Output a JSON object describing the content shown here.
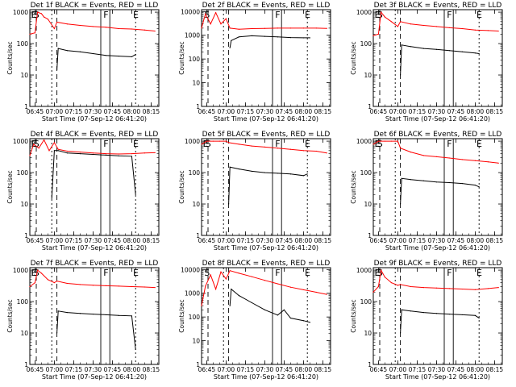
{
  "colors": {
    "events": "#000000",
    "lld": "#ff0000",
    "background": "#ffffff"
  },
  "chart_data": [
    {
      "type": "line",
      "title": "Det 1f BLACK = Events, RED = LLD",
      "xlabel": "Start Time (07-Sep-12 06:41:20)",
      "ylabel": "Counts/sec",
      "x_ticks": [
        "06:45",
        "07:00",
        "07:15",
        "07:30",
        "07:45",
        "08:00",
        "08:15"
      ],
      "x_range": [
        "06:41",
        "08:21"
      ],
      "y_ticks": [
        "1",
        "10",
        "100",
        "1000"
      ],
      "ylim": [
        1,
        1200
      ],
      "yscale": "log",
      "markers": [
        "E",
        "S",
        "F",
        "E"
      ],
      "series": [
        {
          "name": "LLD",
          "x": [
            "06:41",
            "06:45",
            "06:47",
            "06:50",
            "06:52",
            "06:55",
            "07:00",
            "07:02",
            "07:10",
            "07:20",
            "07:30",
            "07:40",
            "07:50",
            "08:00",
            "08:10",
            "08:18"
          ],
          "values": [
            200,
            220,
            1000,
            900,
            700,
            600,
            300,
            480,
            420,
            380,
            350,
            330,
            300,
            290,
            270,
            250
          ]
        },
        {
          "name": "Events",
          "x": [
            "07:02",
            "07:03",
            "07:10",
            "07:20",
            "07:30",
            "07:40",
            "07:50",
            "08:00",
            "08:03"
          ],
          "values": [
            15,
            70,
            60,
            55,
            48,
            42,
            40,
            38,
            45
          ]
        }
      ]
    },
    {
      "type": "line",
      "title": "Det 2f BLACK = Events, RED = LLD",
      "xlabel": "Start Time (07-Sep-12 06:41:20)",
      "ylabel": "Counts/sec",
      "x_ticks": [
        "06:45",
        "07:00",
        "07:15",
        "07:30",
        "07:45",
        "08:00",
        "08:15"
      ],
      "x_range": [
        "06:41",
        "08:21"
      ],
      "y_ticks": [
        "1",
        "10",
        "100",
        "1000",
        "10000"
      ],
      "ylim": [
        1,
        12000
      ],
      "yscale": "log",
      "markers": [
        "S",
        "F",
        "E"
      ],
      "series": [
        {
          "name": "LLD",
          "x": [
            "06:41",
            "06:44",
            "06:48",
            "06:52",
            "06:56",
            "07:00",
            "07:03",
            "07:10",
            "07:20",
            "07:30",
            "07:40",
            "07:50",
            "08:00",
            "08:10",
            "08:18"
          ],
          "values": [
            2000,
            8000,
            3000,
            9000,
            3000,
            5000,
            2000,
            1800,
            1900,
            1950,
            2000,
            2000,
            2000,
            2000,
            1950
          ]
        },
        {
          "name": "Events",
          "x": [
            "07:03",
            "07:04",
            "07:10",
            "07:20",
            "07:30",
            "07:40",
            "07:50",
            "08:00",
            "08:05"
          ],
          "values": [
            300,
            600,
            850,
            950,
            900,
            850,
            800,
            780,
            780
          ]
        }
      ]
    },
    {
      "type": "line",
      "title": "Det 3f BLACK = Events, RED = LLD",
      "xlabel": "Start Time (07-Sep-12 06:41:20)",
      "ylabel": "Counts/sec",
      "x_ticks": [
        "06:45",
        "07:00",
        "07:15",
        "07:30",
        "07:45",
        "08:00",
        "08:15"
      ],
      "x_range": [
        "06:41",
        "08:21"
      ],
      "y_ticks": [
        "1",
        "10",
        "100",
        "1000"
      ],
      "ylim": [
        1,
        1200
      ],
      "yscale": "log",
      "markers": [
        "E",
        "S",
        "F",
        "E"
      ],
      "series": [
        {
          "name": "LLD",
          "x": [
            "06:41",
            "06:45",
            "06:47",
            "06:50",
            "06:55",
            "07:00",
            "07:02",
            "07:10",
            "07:20",
            "07:30",
            "07:40",
            "07:50",
            "08:00",
            "08:10",
            "08:18"
          ],
          "values": [
            180,
            200,
            1000,
            700,
            500,
            350,
            500,
            420,
            380,
            350,
            320,
            300,
            270,
            260,
            250
          ]
        },
        {
          "name": "Events",
          "x": [
            "07:02",
            "07:03",
            "07:10",
            "07:20",
            "07:30",
            "07:40",
            "07:50",
            "08:00",
            "08:03"
          ],
          "values": [
            10,
            90,
            80,
            70,
            65,
            60,
            55,
            50,
            48
          ]
        }
      ]
    },
    {
      "type": "line",
      "title": "Det 4f BLACK = Events, RED = LLD",
      "xlabel": "Start Time (07-Sep-12 06:41:20)",
      "ylabel": "Counts/sec",
      "x_ticks": [
        "06:45",
        "07:00",
        "07:15",
        "07:30",
        "07:45",
        "08:00",
        "08:15"
      ],
      "x_range": [
        "06:41",
        "08:21"
      ],
      "y_ticks": [
        "1",
        "10",
        "100",
        "1000"
      ],
      "ylim": [
        1,
        1200
      ],
      "yscale": "log",
      "markers": [
        "E",
        "S",
        "F",
        "E"
      ],
      "series": [
        {
          "name": "LLD",
          "x": [
            "06:41",
            "06:44",
            "06:48",
            "06:52",
            "06:56",
            "07:00",
            "07:03",
            "07:10",
            "07:20",
            "07:30",
            "07:40",
            "07:50",
            "08:00",
            "08:10",
            "08:18"
          ],
          "values": [
            350,
            800,
            600,
            1100,
            500,
            900,
            550,
            480,
            450,
            420,
            400,
            390,
            400,
            420,
            430
          ]
        },
        {
          "name": "Events",
          "x": [
            "06:58",
            "07:00",
            "07:03",
            "07:10",
            "07:20",
            "07:30",
            "07:40",
            "07:50",
            "08:00",
            "08:03"
          ],
          "values": [
            15,
            500,
            500,
            420,
            400,
            380,
            360,
            340,
            330,
            20
          ]
        }
      ]
    },
    {
      "type": "line",
      "title": "Det 5f BLACK = Events, RED = LLD",
      "xlabel": "Start Time (07-Sep-12 06:41:20)",
      "ylabel": "Counts/sec",
      "x_ticks": [
        "06:45",
        "07:00",
        "07:15",
        "07:30",
        "07:45",
        "08:00",
        "08:15"
      ],
      "x_range": [
        "06:41",
        "08:21"
      ],
      "y_ticks": [
        "1",
        "10",
        "100",
        "1000"
      ],
      "ylim": [
        1,
        1200
      ],
      "yscale": "log",
      "markers": [
        "E",
        "S",
        "F",
        "E"
      ],
      "series": [
        {
          "name": "LLD",
          "x": [
            "06:41",
            "06:45",
            "06:50",
            "06:55",
            "07:00",
            "07:02",
            "07:10",
            "07:20",
            "07:30",
            "07:40",
            "07:50",
            "08:00",
            "08:10",
            "08:18"
          ],
          "values": [
            800,
            1000,
            1000,
            1000,
            1000,
            900,
            800,
            700,
            650,
            600,
            550,
            500,
            480,
            420
          ]
        },
        {
          "name": "Events",
          "x": [
            "07:02",
            "07:03",
            "07:10",
            "07:20",
            "07:30",
            "07:40",
            "07:50",
            "08:00",
            "08:03"
          ],
          "values": [
            10,
            150,
            130,
            110,
            100,
            95,
            90,
            80,
            90
          ]
        }
      ]
    },
    {
      "type": "line",
      "title": "Det 6f BLACK = Events, RED = LLD",
      "xlabel": "Start Time (07-Sep-12 06:41:20)",
      "ylabel": "Counts/sec",
      "x_ticks": [
        "06:45",
        "07:00",
        "07:15",
        "07:30",
        "07:45",
        "08:00",
        "08:15"
      ],
      "x_range": [
        "06:41",
        "08:21"
      ],
      "y_ticks": [
        "1",
        "10",
        "100",
        "1000"
      ],
      "ylim": [
        1,
        1200
      ],
      "yscale": "log",
      "markers": [
        "E",
        "S",
        "F",
        "E"
      ],
      "series": [
        {
          "name": "LLD",
          "x": [
            "06:41",
            "06:45",
            "06:50",
            "06:55",
            "07:00",
            "07:02",
            "07:10",
            "07:20",
            "07:30",
            "07:40",
            "07:50",
            "08:00",
            "08:10",
            "08:18"
          ],
          "values": [
            800,
            1000,
            1000,
            1000,
            1000,
            600,
            450,
            350,
            320,
            290,
            260,
            240,
            220,
            200
          ]
        },
        {
          "name": "Events",
          "x": [
            "07:02",
            "07:03",
            "07:10",
            "07:20",
            "07:30",
            "07:40",
            "07:50",
            "08:00",
            "08:03"
          ],
          "values": [
            10,
            65,
            60,
            55,
            50,
            48,
            45,
            40,
            35
          ]
        }
      ]
    },
    {
      "type": "line",
      "title": "Det 7f BLACK = Events, RED = LLD",
      "xlabel": "Start Time (07-Sep-12 06:41:20)",
      "ylabel": "Counts/sec",
      "x_ticks": [
        "06:45",
        "07:00",
        "07:15",
        "07:30",
        "07:45",
        "08:00",
        "08:15"
      ],
      "x_range": [
        "06:41",
        "08:21"
      ],
      "y_ticks": [
        "1",
        "10",
        "100",
        "1000"
      ],
      "ylim": [
        1,
        1200
      ],
      "yscale": "log",
      "markers": [
        "E",
        "S",
        "F",
        "E"
      ],
      "series": [
        {
          "name": "LLD",
          "x": [
            "06:41",
            "06:45",
            "06:47",
            "06:50",
            "06:55",
            "07:00",
            "07:02",
            "07:10",
            "07:20",
            "07:30",
            "07:40",
            "07:50",
            "08:00",
            "08:10",
            "08:18"
          ],
          "values": [
            300,
            400,
            1000,
            800,
            500,
            400,
            450,
            380,
            350,
            330,
            320,
            310,
            300,
            290,
            280
          ]
        },
        {
          "name": "Events",
          "x": [
            "07:02",
            "07:03",
            "07:10",
            "07:20",
            "07:30",
            "07:40",
            "07:50",
            "08:00",
            "08:03"
          ],
          "values": [
            10,
            50,
            45,
            42,
            40,
            38,
            36,
            35,
            3
          ]
        }
      ]
    },
    {
      "type": "line",
      "title": "Det 8f BLACK = Events, RED = LLD",
      "xlabel": "Start Time (07-Sep-12 06:41:20)",
      "ylabel": "Counts/sec",
      "x_ticks": [
        "06:45",
        "07:00",
        "07:15",
        "07:30",
        "07:45",
        "08:00",
        "08:15"
      ],
      "x_range": [
        "06:41",
        "08:21"
      ],
      "y_ticks": [
        "1",
        "10",
        "100",
        "1000",
        "10000"
      ],
      "ylim": [
        1,
        12000
      ],
      "yscale": "log",
      "markers": [
        "S",
        "F",
        "E"
      ],
      "series": [
        {
          "name": "LLD",
          "x": [
            "06:41",
            "06:44",
            "06:48",
            "06:52",
            "06:56",
            "07:00",
            "07:03",
            "07:10",
            "07:20",
            "07:30",
            "07:40",
            "07:50",
            "08:00",
            "08:10",
            "08:18"
          ],
          "values": [
            300,
            2000,
            6000,
            1500,
            8000,
            4000,
            9000,
            7000,
            5000,
            3500,
            2500,
            1800,
            1400,
            1100,
            900
          ]
        },
        {
          "name": "Events",
          "x": [
            "07:03",
            "07:04",
            "07:10",
            "07:20",
            "07:30",
            "07:40",
            "07:45",
            "07:50",
            "08:00",
            "08:05"
          ],
          "values": [
            300,
            1500,
            800,
            400,
            200,
            120,
            200,
            90,
            70,
            60
          ]
        }
      ]
    },
    {
      "type": "line",
      "title": "Det 9f BLACK = Events, RED = LLD",
      "xlabel": "Start Time (07-Sep-12 06:41:20)",
      "ylabel": "Counts/sec",
      "x_ticks": [
        "06:45",
        "07:00",
        "07:15",
        "07:30",
        "07:45",
        "08:00",
        "08:15"
      ],
      "x_range": [
        "06:41",
        "08:21"
      ],
      "y_ticks": [
        "1",
        "10",
        "100",
        "1000"
      ],
      "ylim": [
        1,
        1200
      ],
      "yscale": "log",
      "markers": [
        "E",
        "S",
        "F",
        "E"
      ],
      "series": [
        {
          "name": "LLD",
          "x": [
            "06:41",
            "06:45",
            "06:47",
            "06:50",
            "06:55",
            "07:00",
            "07:02",
            "07:10",
            "07:20",
            "07:30",
            "07:40",
            "07:50",
            "08:00",
            "08:10",
            "08:18"
          ],
          "values": [
            200,
            300,
            1000,
            600,
            400,
            330,
            350,
            300,
            280,
            270,
            260,
            250,
            240,
            260,
            280
          ]
        },
        {
          "name": "Events",
          "x": [
            "07:02",
            "07:03",
            "07:10",
            "07:20",
            "07:30",
            "07:40",
            "07:50",
            "08:00",
            "08:03"
          ],
          "values": [
            10,
            55,
            50,
            45,
            42,
            40,
            38,
            36,
            30
          ]
        }
      ]
    }
  ]
}
